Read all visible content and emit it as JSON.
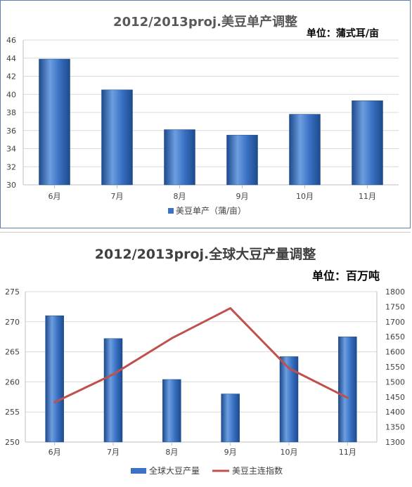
{
  "colors": {
    "bar_light": "#6c9ee0",
    "bar_mid": "#3b72c4",
    "bar_dark": "#1d4a8c",
    "line": "#c0504d",
    "grid": "#d9d9d9",
    "axis": "#bfbfbf"
  },
  "chart_data": [
    {
      "type": "bar",
      "title": "2012/2013proj.美豆单产调整",
      "unit_note": "单位：蒲式耳/亩",
      "categories": [
        "6月",
        "7月",
        "8月",
        "9月",
        "10月",
        "11月"
      ],
      "series": [
        {
          "name": "美豆单产（蒲/亩）",
          "values": [
            43.9,
            40.5,
            36.1,
            35.5,
            37.8,
            39.3
          ]
        }
      ],
      "yticks": [
        "46",
        "44",
        "42",
        "40",
        "38",
        "36",
        "34",
        "32",
        "30"
      ],
      "ylim": [
        30,
        46
      ],
      "grid": true,
      "legend": "bottom"
    },
    {
      "type": "bar+line",
      "title": "2012/2013proj.全球大豆产量调整",
      "unit_note": "单位：百万吨",
      "categories": [
        "6月",
        "7月",
        "8月",
        "9月",
        "10月",
        "11月"
      ],
      "series": [
        {
          "name": "全球大豆产量",
          "type": "bar",
          "axis": "left",
          "values": [
            271.0,
            267.2,
            260.4,
            258.0,
            264.2,
            267.5
          ]
        },
        {
          "name": "美豆主连指数",
          "type": "line",
          "axis": "right",
          "values": [
            1432,
            1525,
            1645,
            1745,
            1545,
            1447
          ]
        }
      ],
      "yticks_left": [
        "275",
        "270",
        "265",
        "260",
        "255",
        "250"
      ],
      "yticks_right": [
        "1800",
        "1750",
        "1700",
        "1650",
        "1600",
        "1550",
        "1500",
        "1450",
        "1400",
        "1350",
        "1300"
      ],
      "ylim_left": [
        250,
        275
      ],
      "ylim_right": [
        1300,
        1800
      ],
      "grid": true,
      "legend": "bottom"
    }
  ]
}
